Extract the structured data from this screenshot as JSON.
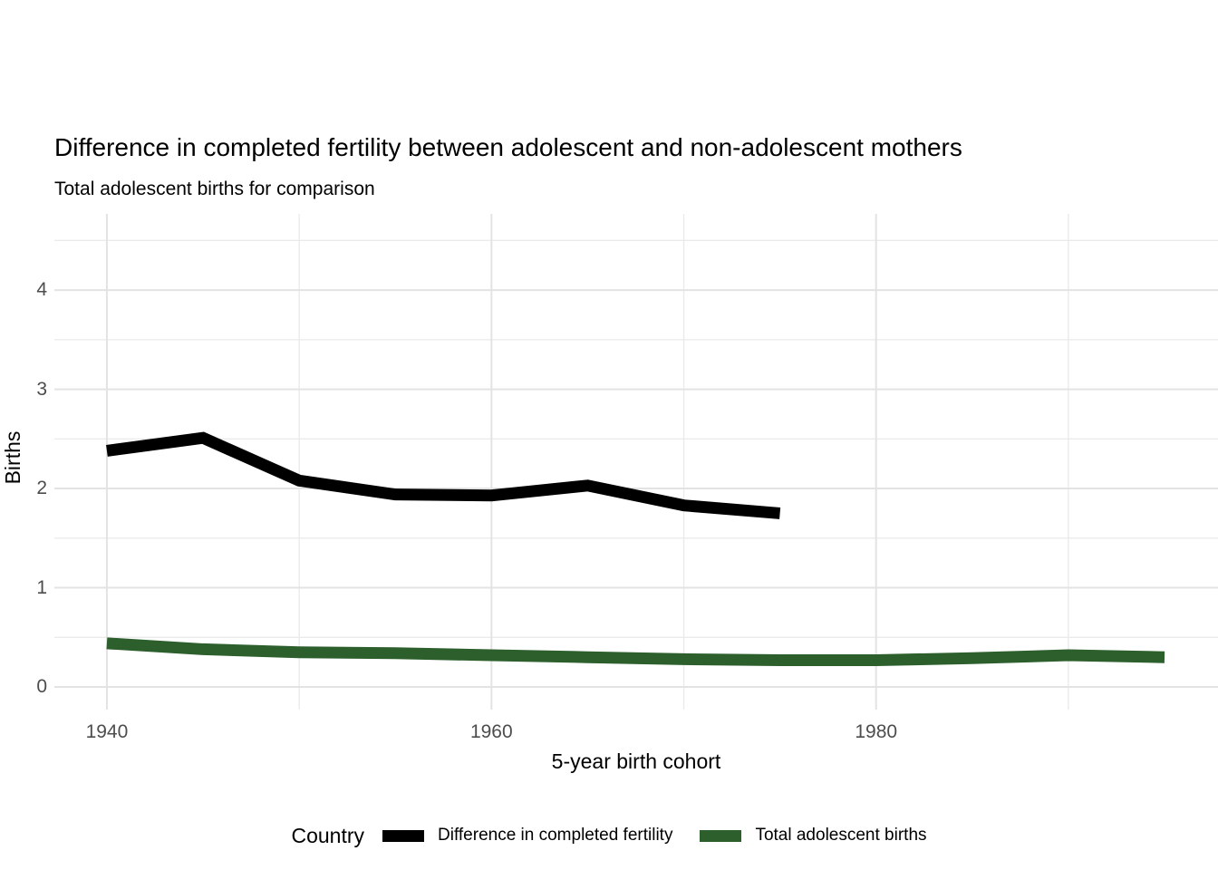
{
  "title": "Difference in completed fertility between adolescent and non-adolescent mothers",
  "subtitle": "Total adolescent births for comparison",
  "chart_data": {
    "type": "line",
    "title": "Difference in completed fertility between adolescent and non-adolescent mothers",
    "subtitle": "Total adolescent births for comparison",
    "xlabel": "5-year birth cohort",
    "ylabel": "Births",
    "xlim": [
      1937.27,
      1997.78
    ],
    "ylim": [
      -0.228,
      4.768
    ],
    "grid": true,
    "x_tick_labels": [
      "1940",
      "1960",
      "1980"
    ],
    "x_major_gridlines": [
      1940,
      1960,
      1980
    ],
    "x_minor_gridlines": [
      1950,
      1970,
      1990
    ],
    "y_ticks": [
      "0",
      "1",
      "2",
      "3",
      "4"
    ],
    "y_major_gridlines": [
      0,
      1,
      2,
      3,
      4
    ],
    "y_minor_gridlines": [
      0.5,
      1.5,
      2.5,
      3.5,
      4.5
    ],
    "legend_position": "bottom",
    "legend_title": "Country",
    "series": [
      {
        "name": "Difference in completed fertility",
        "color": "#000000",
        "x": [
          1940,
          1945,
          1950,
          1955,
          1960,
          1965,
          1970,
          1975
        ],
        "values": [
          2.38,
          2.51,
          2.08,
          1.94,
          1.93,
          2.03,
          1.83,
          1.75
        ]
      },
      {
        "name": "Total adolescent births",
        "color": "#2d5f2d",
        "x": [
          1940,
          1945,
          1950,
          1955,
          1960,
          1965,
          1970,
          1975,
          1980,
          1985,
          1990,
          1995
        ],
        "values": [
          0.44,
          0.38,
          0.35,
          0.34,
          0.32,
          0.3,
          0.28,
          0.27,
          0.27,
          0.29,
          0.32,
          0.3
        ]
      }
    ],
    "style": {
      "line_width": 13,
      "major_grid_color": "#e3e3e3",
      "minor_grid_color": "#ebebeb",
      "tick_text_color": "#4d4d4d",
      "background": "#ffffff"
    }
  }
}
